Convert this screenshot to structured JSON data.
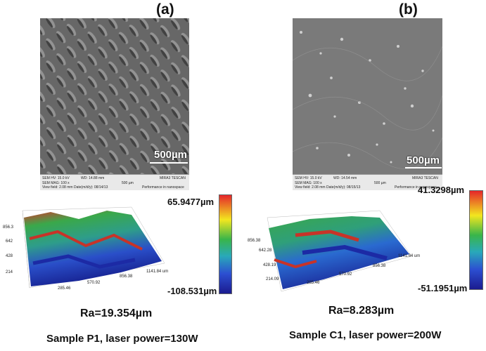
{
  "panels": [
    {
      "label": "(a)",
      "scale_bar": "500µm",
      "sem_info": {
        "hv": "SEM HV: 15.0 kV",
        "wd": "WD: 14.88 mm",
        "mag": "SEM MAG: 100 x",
        "view": "View field: 2.08 mm",
        "date": "Date(m/d/y): 08/14/13",
        "bar": "500 µm",
        "brand": "MIRA3 TESCAN",
        "perf": "Performance in nanospace"
      },
      "colorbar_max": "65.9477µm",
      "colorbar_min": "-108.531µm",
      "axis_ticks_y": [
        "856.3",
        "642",
        "428",
        "214"
      ],
      "axis_ticks_x": [
        "285.46",
        "570.92",
        "856.38",
        "1141.84 um"
      ],
      "roughness": "Ra=19.354µm",
      "caption": "Sample P1, laser power=130W"
    },
    {
      "label": "(b)",
      "scale_bar": "500µm",
      "sem_info": {
        "hv": "SEM HV: 15.0 kV",
        "wd": "WD: 14.54 mm",
        "mag": "SEM MAG: 100 x",
        "view": "View field: 2.08 mm",
        "date": "Date(m/d/y): 08/15/13",
        "bar": "500 µm",
        "brand": "MIRA3 TESCAN",
        "perf": "Performance in nanospace"
      },
      "colorbar_max": "41.3298µm",
      "colorbar_min": "-51.1951µm",
      "axis_ticks_y": [
        "856.38",
        "642.28",
        "428.19",
        "214.09"
      ],
      "axis_ticks_x": [
        "285.46",
        "570.92",
        "856.38",
        "1141.84 um"
      ],
      "roughness": "Ra=8.283µm",
      "caption": "Sample C1, laser power=200W"
    }
  ]
}
